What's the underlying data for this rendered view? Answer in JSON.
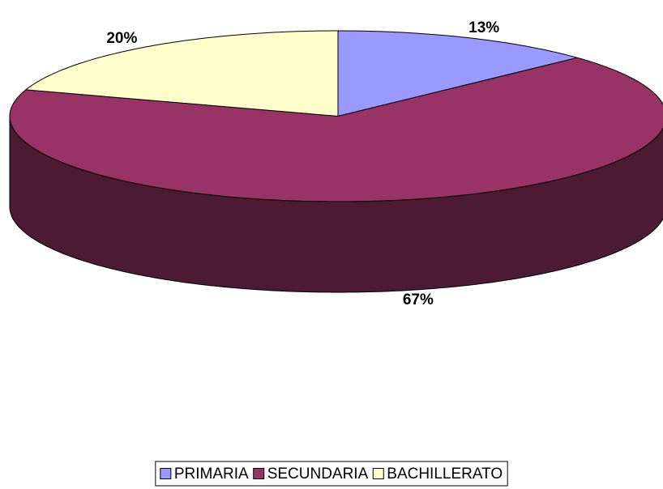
{
  "chart_data": {
    "type": "pie3d",
    "categories": [
      "PRIMARIA",
      "SECUNDARIA",
      "BACHILLERATO"
    ],
    "values": [
      13,
      67,
      20
    ],
    "value_labels": [
      "13%",
      "67%",
      "20%"
    ],
    "colors": [
      "#9999ff",
      "#993366",
      "#ffffcc"
    ],
    "legend": "bottom"
  }
}
